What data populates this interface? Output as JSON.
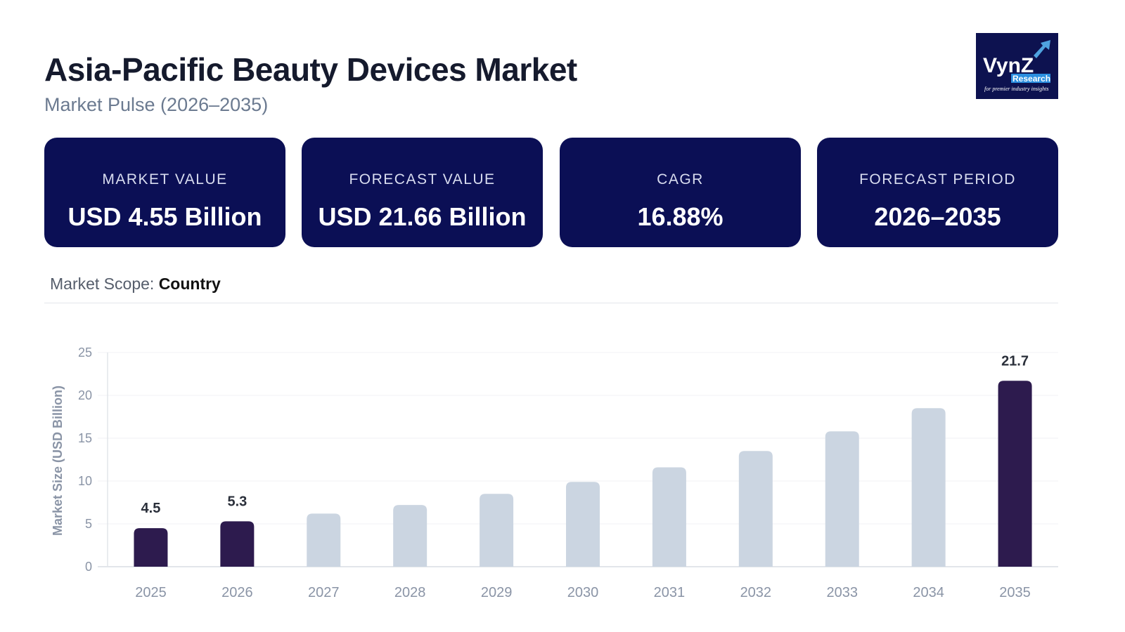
{
  "header": {
    "title": "Asia-Pacific Beauty Devices Market",
    "subtitle": "Market Pulse (2026–2035)",
    "logo_text": "VynZ Research",
    "logo_tagline": "for premier industry insights"
  },
  "cards": [
    {
      "label": "MARKET VALUE",
      "value": "USD 4.55 Billion"
    },
    {
      "label": "FORECAST VALUE",
      "value": "USD 21.66 Billion"
    },
    {
      "label": "CAGR",
      "value": "16.88%"
    },
    {
      "label": "FORECAST PERIOD",
      "value": "2026–2035"
    }
  ],
  "scope": {
    "label": "Market Scope:",
    "value": "Country"
  },
  "colors": {
    "card_bg": "#0b0f55",
    "bar_highlight": "#2d1b4e",
    "bar_default": "#cbd5e1"
  },
  "chart_data": {
    "type": "bar",
    "ylabel": "Market Size (USD Billion)",
    "xlabel": "",
    "ylim": [
      0,
      25
    ],
    "yticks": [
      0,
      5,
      10,
      15,
      20,
      25
    ],
    "grid": true,
    "categories": [
      "2025",
      "2026",
      "2027",
      "2028",
      "2029",
      "2030",
      "2031",
      "2032",
      "2033",
      "2034",
      "2035"
    ],
    "values": [
      4.5,
      5.3,
      6.2,
      7.2,
      8.5,
      9.9,
      11.6,
      13.5,
      15.8,
      18.5,
      21.7
    ],
    "highlighted": [
      true,
      true,
      false,
      false,
      false,
      false,
      false,
      false,
      false,
      false,
      true
    ],
    "data_labels": [
      "4.5",
      "5.3",
      "",
      "",
      "",
      "",
      "",
      "",
      "",
      "",
      "21.7"
    ]
  }
}
